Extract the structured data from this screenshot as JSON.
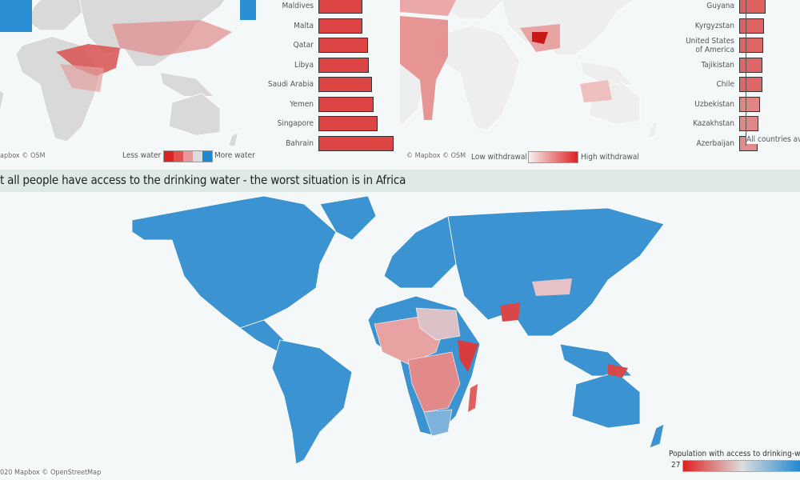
{
  "top_left": {
    "credit": "apbox © OSM",
    "legend_low": "Less water",
    "legend_high": "More water",
    "legend_colors": [
      "#dd2222",
      "#e05050",
      "#e69898",
      "#dddddd",
      "#1f88d0"
    ],
    "bars": {
      "categories": [
        "Maldives",
        "Malta",
        "Qatar",
        "Libya",
        "Saudi Arabia",
        "Yemen",
        "Singapore",
        "Bahrain"
      ],
      "values": [
        55,
        55,
        62,
        63,
        67,
        69,
        74,
        94
      ],
      "color": "#dd4444"
    }
  },
  "top_right": {
    "credit": "© Mapbox © OSM",
    "legend_low": "Low withdrawal",
    "legend_high": "High withdrawal",
    "legend_colors": [
      "#f7f0f0",
      "#dd2222"
    ],
    "average_label": "All countries average",
    "bars": {
      "categories": [
        "Guyana",
        "Kyrgyzstan",
        "United States of America",
        "Tajikistan",
        "Chile",
        "Uzbekistan",
        "Kazakhstan",
        "Azerbaijan"
      ],
      "values": [
        33,
        31,
        30,
        29,
        29,
        26,
        24,
        23
      ],
      "colors": [
        "#df6060",
        "#df6262",
        "#df6464",
        "#df6666",
        "#df6666",
        "#e08484",
        "#e08888",
        "#e08a8a"
      ]
    }
  },
  "bottom": {
    "title": "t all people have access to the drinking water - the worst situation is in Africa",
    "credit": "020 Mapbox © OpenStreetMap",
    "legend_title": "Population with access to drinking-water",
    "legend_min": "27",
    "legend_colors": [
      "#dd2222",
      "#dddddd",
      "#1f88d0"
    ]
  }
}
